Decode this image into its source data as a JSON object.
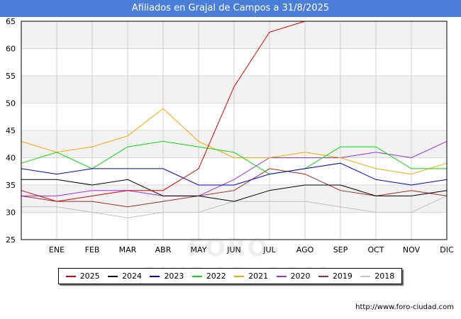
{
  "title": "Afiliados en Grajal de Campos a 31/8/2025",
  "source": "http://www.foro-ciudad.com",
  "watermark": "FORO-CIUDAD.COM",
  "chart_data": {
    "type": "line",
    "title": "Afiliados en Grajal de Campos a 31/8/2025",
    "xlabel": "",
    "ylabel": "",
    "ylim": [
      25,
      65
    ],
    "yticks": [
      25,
      30,
      35,
      40,
      45,
      50,
      55,
      60,
      65
    ],
    "categories": [
      "",
      "ENE",
      "FEB",
      "MAR",
      "ABR",
      "MAY",
      "JUN",
      "JUL",
      "AGO",
      "SEP",
      "OCT",
      "NOV",
      "DIC"
    ],
    "grid": true,
    "legend_position": "bottom",
    "series": [
      {
        "name": "2025",
        "color": "#dd0000",
        "values": [
          34,
          32,
          33,
          34,
          34,
          38,
          53,
          63,
          65,
          null,
          null,
          null,
          null
        ]
      },
      {
        "name": "2024",
        "color": "#000000",
        "values": [
          36,
          36,
          35,
          36,
          33,
          33,
          32,
          34,
          35,
          35,
          33,
          33,
          34
        ]
      },
      {
        "name": "2023",
        "color": "#0000cc",
        "values": [
          38,
          37,
          38,
          38,
          38,
          35,
          35,
          37,
          38,
          39,
          36,
          35,
          36
        ]
      },
      {
        "name": "2022",
        "color": "#00dd00",
        "values": [
          39,
          41,
          38,
          42,
          43,
          42,
          41,
          37,
          38,
          42,
          42,
          38,
          38
        ]
      },
      {
        "name": "2021",
        "color": "#ffa500",
        "values": [
          43,
          41,
          42,
          44,
          49,
          43,
          40,
          40,
          41,
          40,
          38,
          37,
          39
        ]
      },
      {
        "name": "2020",
        "color": "#9b30e0",
        "values": [
          33,
          33,
          34,
          34,
          33,
          33,
          36,
          40,
          40,
          40,
          41,
          40,
          43
        ]
      },
      {
        "name": "2019",
        "color": "#a52a2a",
        "values": [
          33,
          32,
          32,
          31,
          32,
          33,
          34,
          38,
          37,
          34,
          33,
          34,
          33
        ]
      },
      {
        "name": "2018",
        "color": "#c0c0c0",
        "values": [
          31,
          31,
          30,
          29,
          30,
          30,
          32,
          32,
          32,
          31,
          30,
          30,
          33
        ]
      }
    ]
  }
}
